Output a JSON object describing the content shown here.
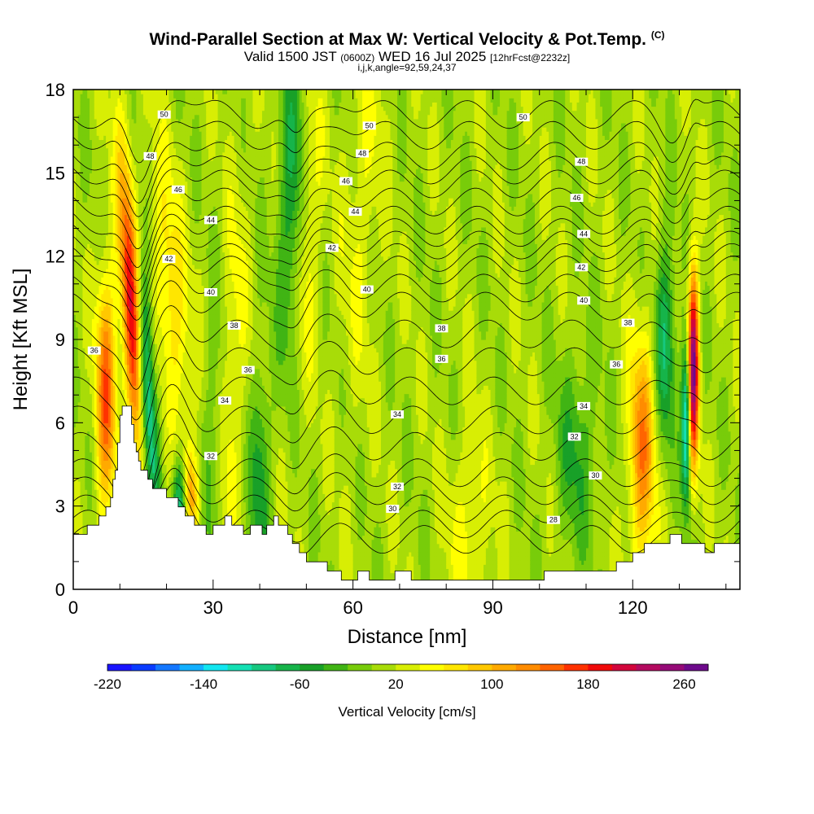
{
  "header": {
    "title": "Wind-Parallel Section at Max W: Vertical Velocity & Pot.Temp.",
    "title_mark": "(C)",
    "subtitle_main": "Valid 1500 JST",
    "subtitle_z": "(0600Z)",
    "subtitle_date": "WED 16 Jul 2025",
    "subtitle_fcst": "[12hrFcst@2232z]",
    "index_line": "i,j,k,angle=92,59,24,37"
  },
  "chart_data": {
    "type": "heatmap",
    "xlabel": "Distance [nm]",
    "ylabel": "Height [Kft MSL]",
    "xlim": [
      0,
      143
    ],
    "ylim": [
      0,
      18
    ],
    "x_ticks": [
      "0",
      "30",
      "60",
      "90",
      "120"
    ],
    "y_ticks": [
      "0",
      "3",
      "6",
      "9",
      "12",
      "15",
      "18"
    ],
    "colorbar": {
      "label": "Vertical Velocity [cm/s]",
      "range": [
        -220,
        280
      ],
      "tick_values": [
        -220,
        -140,
        -60,
        20,
        100,
        180,
        260
      ],
      "tick_labels": [
        "-220",
        "-140",
        "-60",
        "20",
        "100",
        "180",
        "260"
      ],
      "colors": [
        "#1a14ff",
        "#0a3cff",
        "#1478ff",
        "#12b0ff",
        "#12e6f0",
        "#14e0b4",
        "#16c880",
        "#16b44a",
        "#18a028",
        "#40b414",
        "#78cc0a",
        "#a8dc08",
        "#d8ee04",
        "#ffff00",
        "#ffe600",
        "#ffc800",
        "#ffaa00",
        "#ff8c00",
        "#ff6400",
        "#ff3200",
        "#f00a0a",
        "#d2063c",
        "#b40a60",
        "#960a78",
        "#6e0a8c"
      ]
    },
    "terrain_kft": [
      [
        0,
        2.0
      ],
      [
        2,
        2.0
      ],
      [
        4,
        2.3
      ],
      [
        6,
        2.6
      ],
      [
        8,
        3.3
      ],
      [
        9,
        4.4
      ],
      [
        10,
        6.3
      ],
      [
        11,
        6.6
      ],
      [
        12,
        6.6
      ],
      [
        13,
        5.4
      ],
      [
        14,
        4.6
      ],
      [
        15,
        4.3
      ],
      [
        16,
        4.0
      ],
      [
        17,
        3.6
      ],
      [
        19,
        3.6
      ],
      [
        21,
        3.3
      ],
      [
        23,
        3.0
      ],
      [
        25,
        2.6
      ],
      [
        27,
        2.3
      ],
      [
        29,
        2.0
      ],
      [
        31,
        2.3
      ],
      [
        33,
        2.6
      ],
      [
        35,
        2.3
      ],
      [
        37,
        2.0
      ],
      [
        39,
        2.3
      ],
      [
        41,
        2.0
      ],
      [
        43,
        2.6
      ],
      [
        45,
        2.3
      ],
      [
        47,
        1.7
      ],
      [
        49,
        1.3
      ],
      [
        51,
        1.0
      ],
      [
        54,
        0.9
      ],
      [
        56,
        0.6
      ],
      [
        58,
        0.4
      ],
      [
        60,
        0.4
      ],
      [
        62,
        0.6
      ],
      [
        64,
        0.4
      ],
      [
        68,
        0.4
      ],
      [
        70,
        0.7
      ],
      [
        72,
        0.5
      ],
      [
        75,
        0.4
      ],
      [
        80,
        0.4
      ],
      [
        90,
        0.4
      ],
      [
        100,
        0.4
      ],
      [
        102,
        0.7
      ],
      [
        105,
        0.7
      ],
      [
        110,
        0.7
      ],
      [
        115,
        0.7
      ],
      [
        118,
        1.0
      ],
      [
        121,
        1.3
      ],
      [
        124,
        1.7
      ],
      [
        127,
        1.7
      ],
      [
        129,
        2.0
      ],
      [
        131,
        1.7
      ],
      [
        134,
        1.7
      ],
      [
        136,
        1.3
      ],
      [
        139,
        1.7
      ],
      [
        141,
        1.7
      ],
      [
        143,
        1.7
      ]
    ],
    "velocity_features": [
      {
        "x": 13,
        "z": 9.5,
        "sx": 1.6,
        "sz": 4.0,
        "tilt": -0.33,
        "w": 230
      },
      {
        "x": 15.5,
        "z": 7.5,
        "sx": 1.4,
        "sz": 3.5,
        "tilt": -0.33,
        "w": -190
      },
      {
        "x": 21,
        "z": 10.5,
        "sx": 2.5,
        "sz": 3.5,
        "tilt": -0.4,
        "w": 70
      },
      {
        "x": 25,
        "z": 3.5,
        "sx": 1.5,
        "sz": 1.2,
        "tilt": -0.3,
        "w": 110
      },
      {
        "x": 23,
        "z": 3.2,
        "sx": 1.2,
        "sz": 1.2,
        "tilt": 0.0,
        "w": -140
      },
      {
        "x": 30,
        "z": 5,
        "sx": 1.5,
        "sz": 4.0,
        "tilt": 0.2,
        "w": -40
      },
      {
        "x": 34,
        "z": 8,
        "sx": 2.0,
        "sz": 5.0,
        "tilt": 0.2,
        "w": 40
      },
      {
        "x": 40,
        "z": 4,
        "sx": 1.5,
        "sz": 3.0,
        "tilt": 0.1,
        "w": -60
      },
      {
        "x": 47,
        "z": 14,
        "sx": 2.0,
        "sz": 4.0,
        "tilt": 0.1,
        "w": -80
      },
      {
        "x": 50,
        "z": 13,
        "sx": 2.0,
        "sz": 4.0,
        "tilt": 0.2,
        "w": 50
      },
      {
        "x": 62,
        "z": 14,
        "sx": 3.0,
        "sz": 5.0,
        "tilt": 0.3,
        "w": 30
      },
      {
        "x": 85,
        "z": 2,
        "sx": 3.0,
        "sz": 2.5,
        "tilt": 0.0,
        "w": 40
      },
      {
        "x": 108,
        "z": 5,
        "sx": 3.0,
        "sz": 2.5,
        "tilt": 0.0,
        "w": -50
      },
      {
        "x": 122,
        "z": 5,
        "sx": 2.0,
        "sz": 3.0,
        "tilt": 0.0,
        "w": 120
      },
      {
        "x": 127,
        "z": 9,
        "sx": 1.5,
        "sz": 2.5,
        "tilt": 0.0,
        "w": -90
      },
      {
        "x": 131.5,
        "z": 6,
        "sx": 0.7,
        "sz": 2.0,
        "tilt": 0.0,
        "w": -160
      },
      {
        "x": 133,
        "z": 8,
        "sx": 0.8,
        "sz": 2.5,
        "tilt": 0.0,
        "w": 260
      },
      {
        "x": 7,
        "z": 7,
        "sx": 1.5,
        "sz": 3.0,
        "tilt": 0.0,
        "w": 140
      }
    ],
    "theta_levels": [
      28,
      29,
      30,
      31,
      32,
      33,
      34,
      35,
      36,
      37,
      38,
      39,
      40,
      41,
      42,
      43,
      44,
      45,
      46,
      47,
      48,
      49,
      50
    ],
    "theta_base_kft": {
      "28": 1.8,
      "30": 2.9,
      "32": 4.2,
      "34": 6.1,
      "36": 8.2,
      "38": 10.2,
      "40": 11.5,
      "42": 12.4,
      "44": 13.3,
      "46": 14.6,
      "48": 15.6,
      "50": 17.1
    },
    "contour_labels": [
      {
        "text": "50",
        "x": 19.5,
        "z": 17.1
      },
      {
        "text": "48",
        "x": 16.5,
        "z": 15.6
      },
      {
        "text": "46",
        "x": 22.5,
        "z": 14.4
      },
      {
        "text": "44",
        "x": 29.5,
        "z": 13.3
      },
      {
        "text": "42",
        "x": 20.5,
        "z": 11.9
      },
      {
        "text": "40",
        "x": 29.5,
        "z": 10.7
      },
      {
        "text": "38",
        "x": 34.5,
        "z": 9.5
      },
      {
        "text": "36",
        "x": 37.5,
        "z": 7.9
      },
      {
        "text": "34",
        "x": 32.5,
        "z": 6.8
      },
      {
        "text": "32",
        "x": 29.5,
        "z": 4.8
      },
      {
        "text": "36",
        "x": 4.5,
        "z": 8.6
      },
      {
        "text": "50",
        "x": 63.5,
        "z": 16.7
      },
      {
        "text": "48",
        "x": 62.0,
        "z": 15.7
      },
      {
        "text": "46",
        "x": 58.5,
        "z": 14.7
      },
      {
        "text": "44",
        "x": 60.5,
        "z": 13.6
      },
      {
        "text": "42",
        "x": 55.5,
        "z": 12.3
      },
      {
        "text": "40",
        "x": 63.0,
        "z": 10.8
      },
      {
        "text": "38",
        "x": 79.0,
        "z": 9.4
      },
      {
        "text": "36",
        "x": 79.0,
        "z": 8.3
      },
      {
        "text": "34",
        "x": 69.5,
        "z": 6.3
      },
      {
        "text": "32",
        "x": 69.5,
        "z": 3.7
      },
      {
        "text": "30",
        "x": 68.5,
        "z": 2.9
      },
      {
        "text": "28",
        "x": 103.0,
        "z": 2.5
      },
      {
        "text": "50",
        "x": 96.5,
        "z": 17.0
      },
      {
        "text": "48",
        "x": 109.0,
        "z": 15.4
      },
      {
        "text": "46",
        "x": 108.0,
        "z": 14.1
      },
      {
        "text": "44",
        "x": 109.5,
        "z": 12.8
      },
      {
        "text": "42",
        "x": 109.0,
        "z": 11.6
      },
      {
        "text": "40",
        "x": 109.5,
        "z": 10.4
      },
      {
        "text": "38",
        "x": 119.0,
        "z": 9.6
      },
      {
        "text": "36",
        "x": 116.5,
        "z": 8.1
      },
      {
        "text": "34",
        "x": 109.5,
        "z": 6.6
      },
      {
        "text": "32",
        "x": 107.5,
        "z": 5.5
      },
      {
        "text": "30",
        "x": 112.0,
        "z": 4.1
      }
    ]
  }
}
